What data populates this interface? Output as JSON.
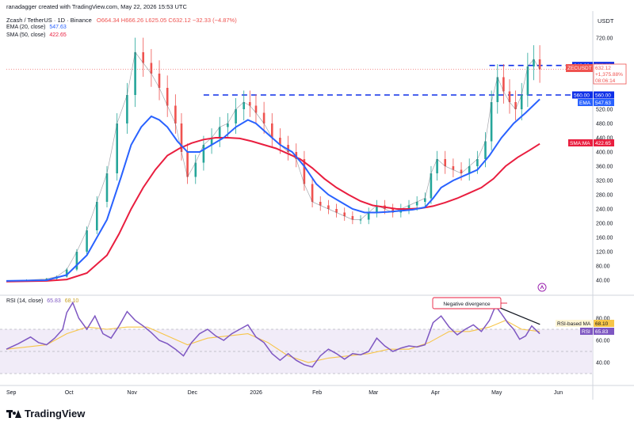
{
  "header": {
    "credit": "ranadagger created with TradingView.com, May 22, 2026 15:53 UTC",
    "symbol": "Zcash / TetherUS · 1D · Binance",
    "ohlc": "O664.34 H666.26 L625.05 C632.12 −32.33 (−4.87%)",
    "ema_label": "EMA (20, close)",
    "ema_value": "547.63",
    "sma_label": "SMA (50, close)",
    "sma_value": "422.65",
    "currency": "USDT"
  },
  "rsi_header": {
    "label": "RSI (14, close)",
    "value": "65.83",
    "ma_value": "68.10"
  },
  "annotation": "Negative divergence",
  "price_tags": {
    "level_643": "643.00",
    "symbol": "ZECUSDT",
    "last": "632.12",
    "change": "+1,375.88%",
    "countdown": "08:06:14",
    "level_560": "560.00",
    "ema": "EMA",
    "ema_val": "547.63",
    "sma": "SMA:MA",
    "sma_val": "422.65",
    "rsi_ma_label": "RSI-based MA",
    "rsi_ma_val": "68.10",
    "rsi_label": "RSI",
    "rsi_val": "65.83"
  },
  "logo": "TradingView",
  "colors": {
    "up": "#26a69a",
    "down": "#ef5350",
    "ema": "#2962ff",
    "sma": "#e91e3f",
    "rsi": "#7e57c2",
    "rsi_ma": "#f7c548",
    "level": "#0d2ee8",
    "band": "#ede7f6"
  },
  "chart_data": {
    "type": "line",
    "title": "Zcash / TetherUS · 1D · Binance",
    "x_labels": [
      "Sep",
      "Oct",
      "Nov",
      "Dec",
      "2026",
      "Feb",
      "Mar",
      "Apr",
      "May",
      "Jun"
    ],
    "x_label_positions": [
      0,
      29,
      60,
      90,
      121,
      152,
      180,
      211,
      241,
      272
    ],
    "y_ticks": [
      40,
      80,
      120,
      160,
      200,
      240,
      280,
      320,
      360,
      400,
      440,
      480,
      520,
      600,
      640,
      720
    ],
    "ylim": [
      0,
      760
    ],
    "horizontal_levels": [
      643,
      560
    ],
    "series": [
      {
        "name": "Close",
        "points": [
          [
            0,
            38
          ],
          [
            10,
            40
          ],
          [
            20,
            44
          ],
          [
            25,
            50
          ],
          [
            30,
            70
          ],
          [
            35,
            120
          ],
          [
            40,
            180
          ],
          [
            45,
            260
          ],
          [
            50,
            340
          ],
          [
            55,
            480
          ],
          [
            60,
            560
          ],
          [
            64,
            680
          ],
          [
            68,
            650
          ],
          [
            72,
            620
          ],
          [
            76,
            580
          ],
          [
            80,
            530
          ],
          [
            84,
            480
          ],
          [
            87,
            400
          ],
          [
            90,
            330
          ],
          [
            94,
            370
          ],
          [
            98,
            420
          ],
          [
            102,
            440
          ],
          [
            106,
            470
          ],
          [
            110,
            480
          ],
          [
            114,
            520
          ],
          [
            118,
            540
          ],
          [
            121,
            530
          ],
          [
            124,
            510
          ],
          [
            128,
            480
          ],
          [
            132,
            440
          ],
          [
            136,
            420
          ],
          [
            140,
            400
          ],
          [
            144,
            380
          ],
          [
            148,
            310
          ],
          [
            152,
            260
          ],
          [
            156,
            250
          ],
          [
            160,
            240
          ],
          [
            164,
            230
          ],
          [
            168,
            220
          ],
          [
            172,
            210
          ],
          [
            176,
            210
          ],
          [
            180,
            230
          ],
          [
            184,
            250
          ],
          [
            188,
            240
          ],
          [
            192,
            230
          ],
          [
            196,
            240
          ],
          [
            200,
            250
          ],
          [
            204,
            260
          ],
          [
            208,
            270
          ],
          [
            211,
            340
          ],
          [
            214,
            380
          ],
          [
            218,
            360
          ],
          [
            222,
            350
          ],
          [
            226,
            340
          ],
          [
            230,
            360
          ],
          [
            234,
            380
          ],
          [
            238,
            430
          ],
          [
            241,
            540
          ],
          [
            244,
            610
          ],
          [
            247,
            570
          ],
          [
            250,
            540
          ],
          [
            253,
            520
          ],
          [
            256,
            560
          ],
          [
            259,
            640
          ],
          [
            262,
            660
          ],
          [
            265,
            632
          ]
        ]
      },
      {
        "name": "EMA (20, close)",
        "points": [
          [
            0,
            38
          ],
          [
            20,
            40
          ],
          [
            30,
            55
          ],
          [
            40,
            110
          ],
          [
            50,
            210
          ],
          [
            57,
            330
          ],
          [
            62,
            420
          ],
          [
            67,
            470
          ],
          [
            72,
            500
          ],
          [
            76,
            490
          ],
          [
            80,
            470
          ],
          [
            85,
            430
          ],
          [
            90,
            400
          ],
          [
            96,
            400
          ],
          [
            102,
            420
          ],
          [
            108,
            440
          ],
          [
            114,
            470
          ],
          [
            120,
            490
          ],
          [
            124,
            480
          ],
          [
            130,
            450
          ],
          [
            136,
            420
          ],
          [
            142,
            400
          ],
          [
            148,
            360
          ],
          [
            154,
            310
          ],
          [
            160,
            280
          ],
          [
            166,
            260
          ],
          [
            172,
            240
          ],
          [
            178,
            230
          ],
          [
            184,
            230
          ],
          [
            190,
            232
          ],
          [
            196,
            235
          ],
          [
            202,
            238
          ],
          [
            208,
            245
          ],
          [
            212,
            270
          ],
          [
            216,
            300
          ],
          [
            222,
            320
          ],
          [
            228,
            335
          ],
          [
            234,
            350
          ],
          [
            240,
            390
          ],
          [
            246,
            440
          ],
          [
            252,
            480
          ],
          [
            258,
            510
          ],
          [
            265,
            548
          ]
        ]
      },
      {
        "name": "SMA (50, close)",
        "points": [
          [
            0,
            36
          ],
          [
            20,
            38
          ],
          [
            30,
            42
          ],
          [
            40,
            60
          ],
          [
            50,
            110
          ],
          [
            56,
            170
          ],
          [
            62,
            240
          ],
          [
            68,
            300
          ],
          [
            74,
            350
          ],
          [
            80,
            390
          ],
          [
            86,
            410
          ],
          [
            92,
            425
          ],
          [
            98,
            435
          ],
          [
            104,
            440
          ],
          [
            110,
            440
          ],
          [
            116,
            438
          ],
          [
            122,
            430
          ],
          [
            128,
            420
          ],
          [
            134,
            410
          ],
          [
            140,
            395
          ],
          [
            146,
            380
          ],
          [
            152,
            355
          ],
          [
            158,
            325
          ],
          [
            164,
            300
          ],
          [
            170,
            280
          ],
          [
            176,
            262
          ],
          [
            182,
            250
          ],
          [
            188,
            245
          ],
          [
            194,
            240
          ],
          [
            200,
            240
          ],
          [
            206,
            242
          ],
          [
            212,
            248
          ],
          [
            218,
            258
          ],
          [
            224,
            270
          ],
          [
            230,
            285
          ],
          [
            236,
            300
          ],
          [
            242,
            325
          ],
          [
            248,
            360
          ],
          [
            254,
            385
          ],
          [
            260,
            405
          ],
          [
            265,
            423
          ]
        ]
      }
    ],
    "rsi": {
      "name": "RSI (14, close)",
      "ylim": [
        20,
        100
      ],
      "band": [
        30,
        70
      ],
      "levels": [
        30,
        50,
        70
      ],
      "y_ticks": [
        40,
        60,
        80
      ],
      "values": [
        [
          0,
          52
        ],
        [
          6,
          57
        ],
        [
          12,
          63
        ],
        [
          16,
          58
        ],
        [
          20,
          56
        ],
        [
          24,
          62
        ],
        [
          28,
          70
        ],
        [
          30,
          85
        ],
        [
          33,
          94
        ],
        [
          36,
          80
        ],
        [
          40,
          70
        ],
        [
          44,
          82
        ],
        [
          48,
          66
        ],
        [
          52,
          62
        ],
        [
          56,
          73
        ],
        [
          60,
          86
        ],
        [
          64,
          78
        ],
        [
          68,
          73
        ],
        [
          72,
          67
        ],
        [
          76,
          60
        ],
        [
          80,
          57
        ],
        [
          84,
          52
        ],
        [
          88,
          46
        ],
        [
          92,
          58
        ],
        [
          96,
          66
        ],
        [
          100,
          70
        ],
        [
          104,
          64
        ],
        [
          108,
          60
        ],
        [
          112,
          66
        ],
        [
          116,
          70
        ],
        [
          120,
          74
        ],
        [
          124,
          63
        ],
        [
          128,
          58
        ],
        [
          132,
          48
        ],
        [
          136,
          42
        ],
        [
          140,
          48
        ],
        [
          144,
          42
        ],
        [
          148,
          38
        ],
        [
          152,
          36
        ],
        [
          156,
          46
        ],
        [
          160,
          52
        ],
        [
          164,
          48
        ],
        [
          168,
          43
        ],
        [
          172,
          48
        ],
        [
          176,
          47
        ],
        [
          180,
          50
        ],
        [
          184,
          62
        ],
        [
          188,
          55
        ],
        [
          192,
          50
        ],
        [
          196,
          53
        ],
        [
          200,
          55
        ],
        [
          204,
          54
        ],
        [
          208,
          56
        ],
        [
          212,
          76
        ],
        [
          216,
          82
        ],
        [
          220,
          72
        ],
        [
          224,
          65
        ],
        [
          228,
          70
        ],
        [
          232,
          74
        ],
        [
          236,
          68
        ],
        [
          240,
          78
        ],
        [
          243,
          91
        ],
        [
          246,
          84
        ],
        [
          249,
          76
        ],
        [
          252,
          70
        ],
        [
          255,
          61
        ],
        [
          258,
          64
        ],
        [
          261,
          73
        ],
        [
          265,
          66
        ]
      ],
      "ma_values": [
        [
          0,
          52
        ],
        [
          20,
          56
        ],
        [
          30,
          66
        ],
        [
          40,
          72
        ],
        [
          50,
          70
        ],
        [
          60,
          72
        ],
        [
          70,
          72
        ],
        [
          80,
          64
        ],
        [
          90,
          56
        ],
        [
          100,
          62
        ],
        [
          110,
          64
        ],
        [
          120,
          66
        ],
        [
          130,
          58
        ],
        [
          140,
          46
        ],
        [
          150,
          40
        ],
        [
          160,
          44
        ],
        [
          170,
          46
        ],
        [
          180,
          48
        ],
        [
          190,
          52
        ],
        [
          200,
          52
        ],
        [
          210,
          58
        ],
        [
          220,
          68
        ],
        [
          230,
          68
        ],
        [
          240,
          72
        ],
        [
          248,
          78
        ],
        [
          256,
          70
        ],
        [
          265,
          68
        ]
      ],
      "divergence_line": [
        [
          243,
          91
        ],
        [
          258,
          73
        ]
      ]
    }
  }
}
